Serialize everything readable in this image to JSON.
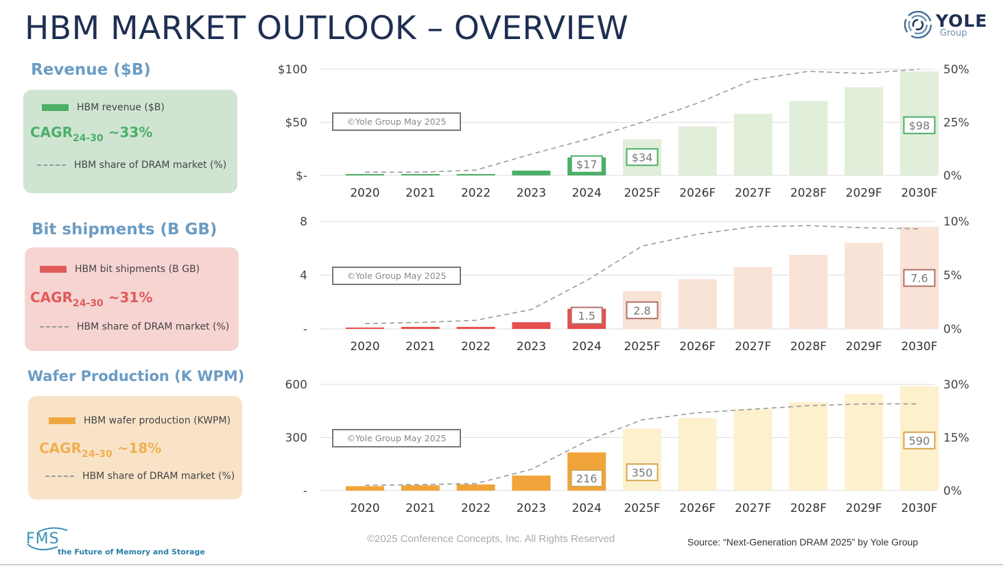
{
  "header": {
    "title": "HBM MARKET OUTLOOK – OVERVIEW",
    "logo_word": "YOLE",
    "logo_sub": "Group"
  },
  "sections": [
    {
      "title": "Revenue ($B)",
      "legend_bar": "HBM revenue ($B)",
      "cagr_main": "CAGR",
      "cagr_sub": "24-30",
      "cagr_value": " ~33%",
      "legend_line": "HBM share of DRAM market (%)",
      "accent": "#4caf68",
      "box_bg": "#cfe5d2"
    },
    {
      "title": "Bit shipments (B GB)",
      "legend_bar": "HBM bit shipments (B GB)",
      "cagr_main": "CAGR",
      "cagr_sub": "24-30",
      "cagr_value": " ~31%",
      "legend_line": "HBM share of DRAM market (%)",
      "accent": "#e05a5a",
      "box_bg": "#f6d4d2"
    },
    {
      "title": "Wafer Production (K WPM)",
      "legend_bar": "HBM wafer production (KWPM)",
      "cagr_main": "CAGR",
      "cagr_sub": "24-30",
      "cagr_value": " ~18%",
      "legend_line": "HBM share of DRAM market (%)",
      "accent": "#f0a640",
      "box_bg": "#f9e3c8"
    }
  ],
  "chart_data": [
    {
      "type": "bar",
      "title": "Revenue ($B)",
      "categories": [
        "2020",
        "2021",
        "2022",
        "2023",
        "2024",
        "2025F",
        "2026F",
        "2027F",
        "2028F",
        "2029F",
        "2030F"
      ],
      "series": [
        {
          "name": "HBM revenue ($B)",
          "axis": "left",
          "values": [
            0.3,
            0.6,
            1.2,
            4.5,
            17,
            34,
            46,
            58,
            70,
            83,
            98
          ]
        },
        {
          "name": "HBM share of DRAM market (%)",
          "axis": "right",
          "type": "line",
          "values": [
            1.5,
            1.5,
            2.5,
            10,
            17,
            25,
            34,
            45,
            49,
            48,
            50
          ]
        }
      ],
      "left_ticks": [
        "$-",
        "$50",
        "$100"
      ],
      "left_range": [
        0,
        100
      ],
      "right_ticks": [
        "0%",
        "25%",
        "50%"
      ],
      "right_range": [
        0,
        50
      ],
      "data_labels": {
        "2024": "$17",
        "2025F": "$34",
        "2030F": "$98"
      },
      "watermark": "©Yole Group May 2025",
      "actual_color": "#4caf68",
      "forecast_color": "#e1eed9",
      "label_border": "#4caf68",
      "grid": true
    },
    {
      "type": "bar",
      "title": "Bit shipments (B GB)",
      "categories": [
        "2020",
        "2021",
        "2022",
        "2023",
        "2024",
        "2025F",
        "2026F",
        "2027F",
        "2028F",
        "2029F",
        "2030F"
      ],
      "series": [
        {
          "name": "HBM bit shipments (B GB)",
          "axis": "left",
          "values": [
            0.1,
            0.15,
            0.15,
            0.5,
            1.5,
            2.8,
            3.7,
            4.6,
            5.5,
            6.4,
            7.6
          ]
        },
        {
          "name": "HBM share of DRAM market (%)",
          "axis": "right",
          "type": "line",
          "values": [
            0.5,
            0.6,
            0.8,
            1.8,
            4.5,
            7.7,
            8.8,
            9.5,
            9.6,
            9.4,
            9.3
          ]
        }
      ],
      "left_ticks": [
        "-",
        "4",
        "8"
      ],
      "left_range": [
        0,
        8
      ],
      "right_ticks": [
        "0%",
        "5%",
        "10%"
      ],
      "right_range": [
        0,
        10
      ],
      "data_labels": {
        "2024": "1.5",
        "2025F": "2.8",
        "2030F": "7.6"
      },
      "watermark": "©Yole Group May 2025",
      "actual_color": "#e5504f",
      "forecast_color": "#f9e3d6",
      "label_border": "#b0706a",
      "grid": true
    },
    {
      "type": "bar",
      "title": "Wafer Production (K WPM)",
      "categories": [
        "2020",
        "2021",
        "2022",
        "2023",
        "2024",
        "2025F",
        "2026F",
        "2027F",
        "2028F",
        "2029F",
        "2030F"
      ],
      "series": [
        {
          "name": "HBM wafer production (KWPM)",
          "axis": "left",
          "values": [
            25,
            30,
            35,
            85,
            216,
            350,
            410,
            460,
            500,
            545,
            590
          ]
        },
        {
          "name": "HBM share of DRAM market (%)",
          "axis": "right",
          "type": "line",
          "values": [
            1.5,
            1.7,
            2,
            6,
            14,
            20,
            22,
            23,
            24,
            24.5,
            24.5
          ]
        }
      ],
      "left_ticks": [
        "-",
        "300",
        "600"
      ],
      "left_range": [
        0,
        600
      ],
      "right_ticks": [
        "0%",
        "15%",
        "30%"
      ],
      "right_range": [
        0,
        30
      ],
      "data_labels": {
        "2024": "216",
        "2025F": "350",
        "2030F": "590"
      },
      "watermark": "©Yole Group May 2025",
      "actual_color": "#f0a43a",
      "forecast_color": "#fdf0cc",
      "label_border": "#d4a550",
      "grid": true
    }
  ],
  "footer": {
    "copyright": "©2025 Conference Concepts, Inc. All Rights Reserved",
    "source": "Source: “Next-Generation DRAM 2025” by Yole Group",
    "fms_word": "FMS",
    "fms_tagline": "the Future of Memory and Storage"
  }
}
